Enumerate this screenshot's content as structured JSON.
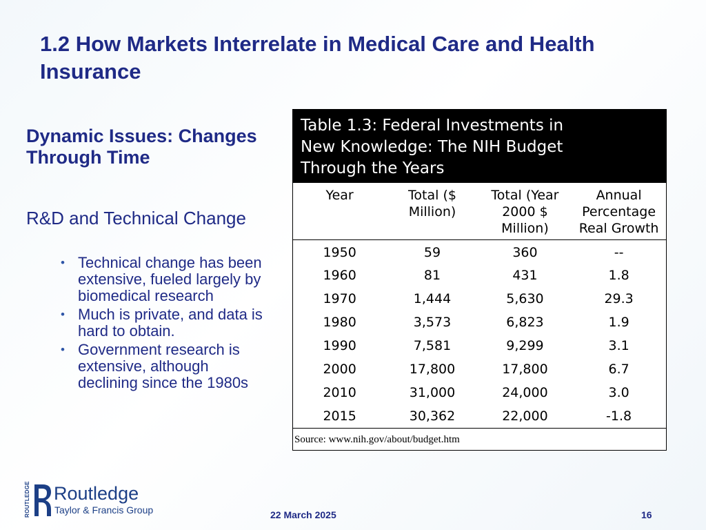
{
  "slide": {
    "title": "1.2  How Markets Interrelate in Medical Care and Health Insurance",
    "heading": "Dynamic Issues: Changes Through Time",
    "subheading": "R&D and Technical Change",
    "bullets": [
      "Technical change has been extensive, fueled largely by biomedical research",
      "Much is private, and data is hard to obtain.",
      "Government research is extensive, although declining since the 1980s"
    ]
  },
  "table": {
    "caption": "Table 1.3:  Federal Investments in New Knowledge:   The NIH Budget Through the Years",
    "headers": [
      "Year",
      "Total ($ Million)",
      "Total (Year 2000 $ Million)",
      "Annual Percentage Real Growth"
    ],
    "rows": [
      [
        "1950",
        "59",
        "360",
        "--"
      ],
      [
        "1960",
        "81",
        "431",
        "1.8"
      ],
      [
        "1970",
        "1,444",
        "5,630",
        "29.3"
      ],
      [
        "1980",
        "3,573",
        "6,823",
        "1.9"
      ],
      [
        "1990",
        "7,581",
        "9,299",
        "3.1"
      ],
      [
        "2000",
        "17,800",
        "17,800",
        "6.7"
      ],
      [
        "2010",
        "31,000",
        "24,000",
        "3.0"
      ],
      [
        "2015",
        "30,362",
        "22,000",
        "-1.8"
      ]
    ],
    "source": "Source:  www.nih.gov/about/budget.htm"
  },
  "footer": {
    "date": "22 March 2025",
    "page": "16"
  },
  "logo": {
    "name": "Routledge",
    "tagline": "Taylor & Francis Group",
    "side_text": "ROUTLEDGE",
    "icon": "routledge-logo-icon",
    "color": "#1c3f86"
  },
  "colors": {
    "title": "#1f2a86",
    "caption_bg": "#000000",
    "caption_text": "#ffffff"
  }
}
